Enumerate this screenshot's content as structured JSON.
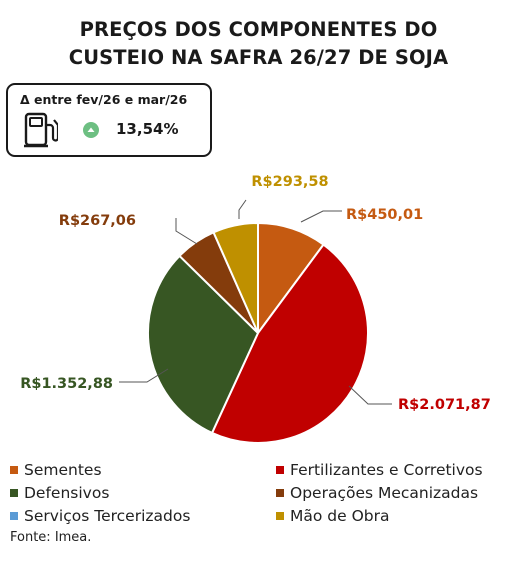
{
  "title_line1": "PREÇOS DOS COMPONENTES DO",
  "title_line2": "CUSTEIO NA SAFRA 26/27 DE SOJA",
  "delta": {
    "label": "Δ entre fev/26 e mar/26",
    "value": "13,54%",
    "icon": "fuel-pump-icon",
    "trend_icon": "arrow-up-circle-icon",
    "trend_color": "#6dbf82"
  },
  "chart_data": {
    "type": "pie",
    "categories": [
      "Sementes",
      "Fertilizantes e Corretivos",
      "Defensivos",
      "Operações Mecanizadas",
      "Serviços Tercerizados",
      "Mão de Obra"
    ],
    "values": [
      450.01,
      2071.87,
      1352.88,
      267.06,
      0,
      293.58
    ],
    "labels": [
      "R$450,01",
      "R$2.071,87",
      "R$1.352,88",
      "R$267,06",
      "",
      "R$293,58"
    ],
    "colors": [
      "#c55a11",
      "#c00000",
      "#375623",
      "#843c0c",
      "#5b9bd5",
      "#bf9000"
    ],
    "legend_placement": "bottom"
  },
  "source": "Fonte: Imea."
}
